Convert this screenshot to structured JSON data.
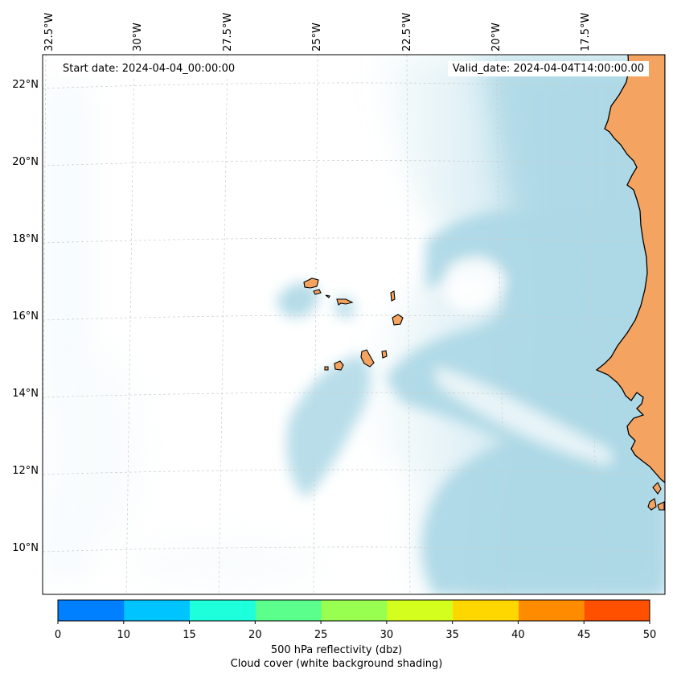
{
  "header": {
    "start_date": "Start date: 2024-04-04_00:00:00",
    "valid_date": "Valid_date: 2024-04-04T14:00:00.00"
  },
  "axes": {
    "longitude_labels": [
      "32.5°W",
      "30°W",
      "27.5°W",
      "25°W",
      "22.5°W",
      "20°W",
      "17.5°W"
    ],
    "latitude_labels": [
      "22°N",
      "20°N",
      "18°N",
      "16°N",
      "14°N",
      "12°N",
      "10°N"
    ]
  },
  "colorbar": {
    "ticks": [
      "0",
      "10",
      "15",
      "20",
      "25",
      "30",
      "35",
      "40",
      "45",
      "50"
    ],
    "colors": [
      "#0080ff",
      "#00c4ff",
      "#1effdc",
      "#5aff8c",
      "#98ff50",
      "#d4ff1e",
      "#ffd700",
      "#ff8c00",
      "#ff5000"
    ],
    "label_line1": "500 hPa reflectivity (dbz)",
    "label_line2": "Cloud cover (white background shading)"
  },
  "colors": {
    "land": "#f4a460",
    "cloud": "#add8e6",
    "coastline": "#000000"
  }
}
